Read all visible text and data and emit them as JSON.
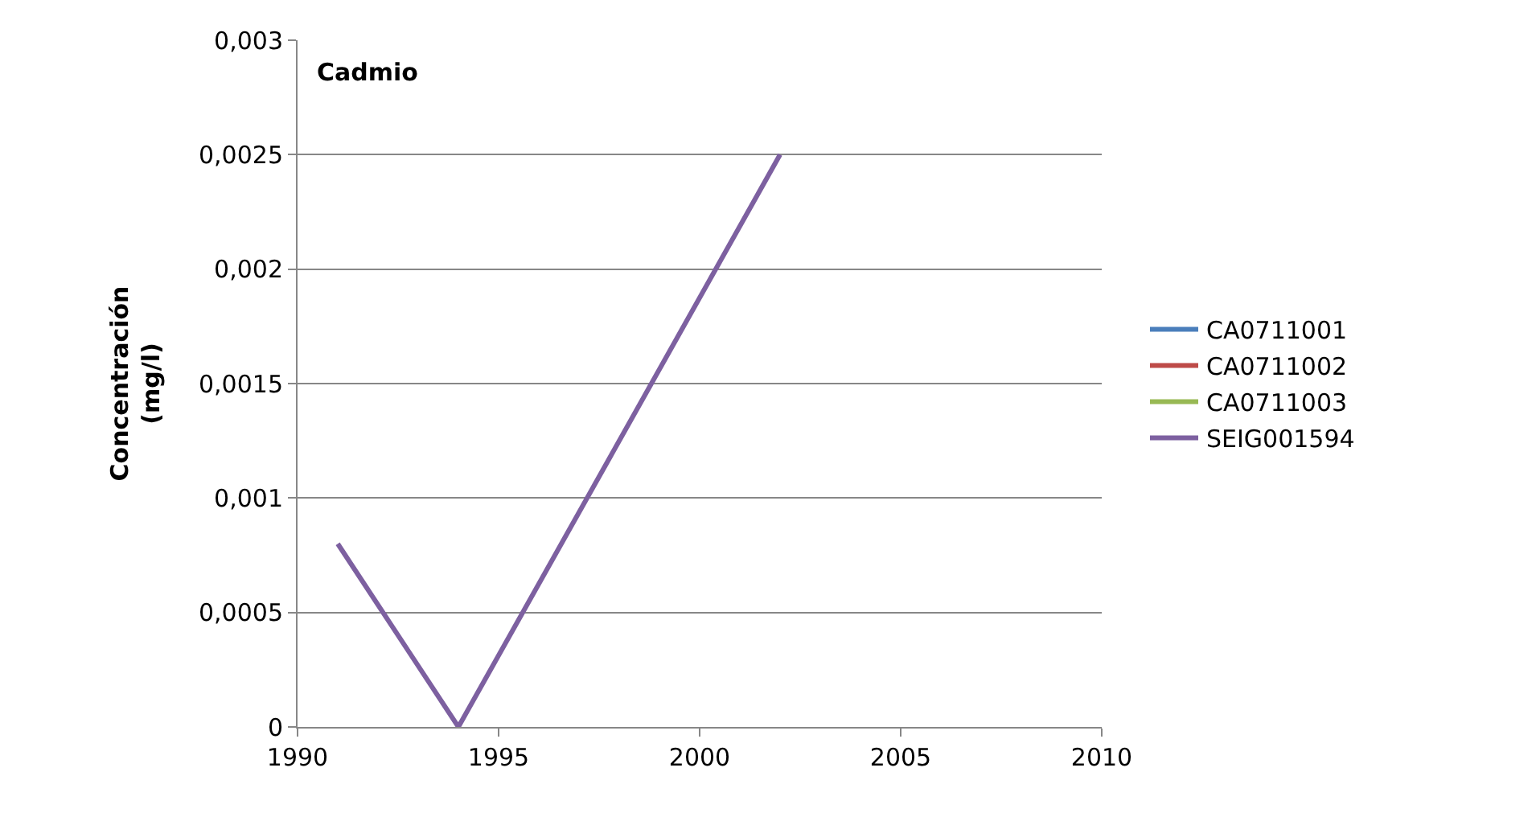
{
  "chart_data": {
    "type": "line",
    "title": "Cadmio",
    "ylabel": "Concentración (mg/l)",
    "x": [
      1991,
      1994,
      2002
    ],
    "series": [
      {
        "name": "CA0711001",
        "color": "#4a7ebb",
        "values": [
          null,
          null,
          null
        ]
      },
      {
        "name": "CA0711002",
        "color": "#be4b48",
        "values": [
          null,
          null,
          null
        ]
      },
      {
        "name": "CA0711003",
        "color": "#98b954",
        "values": [
          null,
          null,
          null
        ]
      },
      {
        "name": "SEIG001594",
        "color": "#7d60a0",
        "values": [
          0.0008,
          0,
          0.0025
        ]
      }
    ],
    "xlim": [
      1990,
      2010
    ],
    "xticks": [
      1990,
      1995,
      2000,
      2005,
      2010
    ],
    "ylim": [
      0,
      0.003
    ],
    "yticks": [
      {
        "value": 0,
        "label": "0"
      },
      {
        "value": 0.0005,
        "label": "0,0005"
      },
      {
        "value": 0.001,
        "label": "0,001"
      },
      {
        "value": 0.0015,
        "label": "0,0015"
      },
      {
        "value": 0.002,
        "label": "0,002"
      },
      {
        "value": 0.0025,
        "label": "0,0025"
      },
      {
        "value": 0.003,
        "label": "0,003"
      }
    ],
    "grid": "y",
    "legend": "right",
    "marker": "none",
    "line_style": "solid"
  }
}
